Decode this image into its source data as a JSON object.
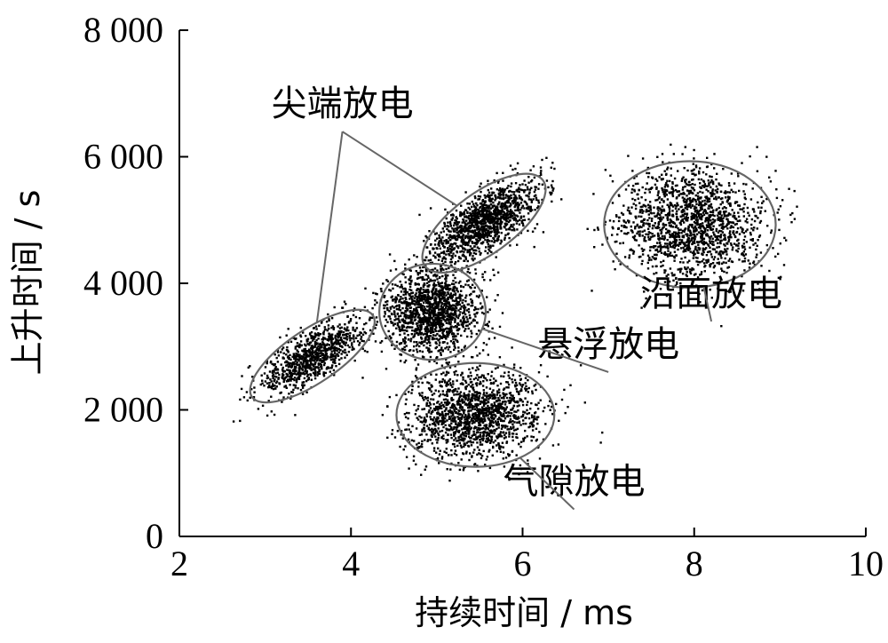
{
  "chart_data": {
    "type": "scatter",
    "title": "",
    "xlabel": "持续时间 / ms",
    "ylabel": "上升时间 / s",
    "xlim": [
      2,
      10
    ],
    "ylim": [
      0,
      8000
    ],
    "x_ticks": [
      2,
      4,
      6,
      8,
      10
    ],
    "x_tick_labels": [
      "2",
      "4",
      "6",
      "8",
      "10"
    ],
    "y_ticks": [
      0,
      2000,
      4000,
      6000,
      8000
    ],
    "y_tick_labels": [
      "0",
      "2 000",
      "4 000",
      "6 000",
      "8 000"
    ],
    "grid": false,
    "legend": "none",
    "point_color": "#000000",
    "outline_color": "#666666",
    "clusters": [
      {
        "label": "尖端放电",
        "center": [
          4.6,
          3900
        ],
        "ellipses": [
          {
            "center": [
              3.55,
              2850
            ],
            "semi_axes": [
              0.85,
              420
            ],
            "rotation_deg": -34
          },
          {
            "center": [
              5.55,
              4950
            ],
            "semi_axes": [
              0.85,
              480
            ],
            "rotation_deg": -36
          }
        ],
        "label_anchor": [
          3.9,
          6650
        ]
      },
      {
        "label": "悬浮放电",
        "center": [
          4.9,
          3550
        ],
        "ellipses": [
          {
            "center": [
              4.95,
              3550
            ],
            "semi_axes": [
              0.62,
              760
            ],
            "rotation_deg": 0
          }
        ],
        "label_anchor": [
          7.0,
          2850
        ]
      },
      {
        "label": "气隙放电",
        "center": [
          5.4,
          2000
        ],
        "ellipses": [
          {
            "center": [
              5.45,
              1920
            ],
            "semi_axes": [
              0.92,
              820
            ],
            "rotation_deg": 0
          }
        ],
        "label_anchor": [
          6.6,
          680
        ]
      },
      {
        "label": "沿面放电",
        "center": [
          8.0,
          5100
        ],
        "ellipses": [
          {
            "center": [
              7.95,
              4930
            ],
            "semi_axes": [
              1.0,
              1000
            ],
            "rotation_deg": 0
          }
        ],
        "label_anchor": [
          8.2,
          3650
        ]
      }
    ]
  }
}
